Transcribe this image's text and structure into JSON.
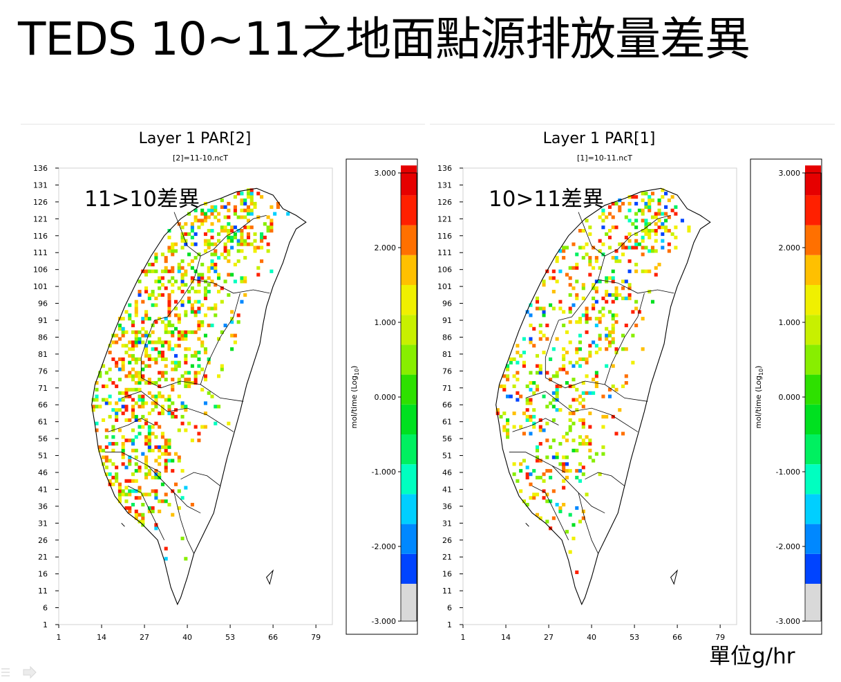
{
  "slide": {
    "title": "TEDS 10~11之地面點源排放量差異",
    "unit_label": "單位g/hr"
  },
  "colors": {
    "map_outline": "#000000",
    "cb_bins": [
      "#d9d9d9",
      "#0044ff",
      "#0088ff",
      "#00cfff",
      "#00ffc0",
      "#00f060",
      "#00e020",
      "#2ee000",
      "#88ee00",
      "#c8f000",
      "#f0f000",
      "#ffc000",
      "#ff7000",
      "#ff2000",
      "#e60000"
    ]
  },
  "chart_data": [
    {
      "type": "heatmap",
      "title": "Layer 1 PAR[2]",
      "subtitle": "[2]=11-10.ncT",
      "annotation": "11>10差異",
      "x_ticks": [
        "1",
        "14",
        "27",
        "40",
        "53",
        "66",
        "79"
      ],
      "y_ticks": [
        "136",
        "131",
        "126",
        "121",
        "116",
        "111",
        "106",
        "101",
        "96",
        "91",
        "86",
        "81",
        "76",
        "71",
        "66",
        "61",
        "56",
        "51",
        "46",
        "41",
        "36",
        "31",
        "26",
        "21",
        "16",
        "11",
        "6",
        "1"
      ],
      "xlim": [
        1,
        84
      ],
      "ylim": [
        1,
        136
      ],
      "colorbar": {
        "label": "mol/time (Log",
        "label_sub": "10",
        "label_end": ")",
        "ticks": [
          "3.000",
          "2.000",
          "1.000",
          "0.000",
          "-1.000",
          "-2.000",
          "-3.000"
        ],
        "range": [
          -3,
          3
        ]
      }
    },
    {
      "type": "heatmap",
      "title": "Layer 1 PAR[1]",
      "subtitle": "[1]=10-11.ncT",
      "annotation": "10>11差異",
      "x_ticks": [
        "1",
        "14",
        "27",
        "40",
        "53",
        "66",
        "79"
      ],
      "y_ticks": [
        "136",
        "131",
        "126",
        "121",
        "116",
        "111",
        "106",
        "101",
        "96",
        "91",
        "86",
        "81",
        "76",
        "71",
        "66",
        "61",
        "56",
        "51",
        "46",
        "41",
        "36",
        "31",
        "26",
        "21",
        "16",
        "11",
        "6",
        "1"
      ],
      "xlim": [
        1,
        84
      ],
      "ylim": [
        1,
        136
      ],
      "colorbar": {
        "label": "mol/time (Log",
        "label_sub": "10",
        "label_end": ")",
        "ticks": [
          "3.000",
          "2.000",
          "1.000",
          "0.000",
          "-1.000",
          "-2.000",
          "-3.000"
        ],
        "range": [
          -3,
          3
        ]
      }
    }
  ]
}
